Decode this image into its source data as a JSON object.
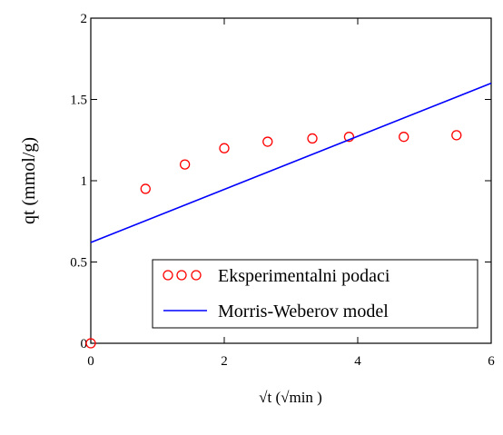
{
  "chart_data": {
    "type": "scatter",
    "xlabel": "√t (√min )",
    "ylabel": "qt (mmol/g)",
    "xlim": [
      0,
      6
    ],
    "ylim": [
      0,
      2
    ],
    "x_ticks": [
      "0",
      "2",
      "4",
      "6"
    ],
    "y_ticks": [
      "0",
      "0.5",
      "1",
      "1.5",
      "2"
    ],
    "legend_position": "bottom-right",
    "grid": false,
    "series": [
      {
        "name": "Eksperimentalni podaci",
        "kind": "markers",
        "marker": "circle",
        "color": "#ff0000",
        "x": [
          0,
          0.82,
          1.41,
          2.0,
          2.65,
          3.32,
          3.87,
          4.69,
          5.48
        ],
        "y": [
          0,
          0.95,
          1.1,
          1.2,
          1.24,
          1.26,
          1.27,
          1.27,
          1.28
        ]
      },
      {
        "name": "Morris-Weberov model",
        "kind": "line",
        "color": "#0000ff",
        "x": [
          0,
          6
        ],
        "y": [
          0.62,
          1.6
        ]
      }
    ]
  }
}
